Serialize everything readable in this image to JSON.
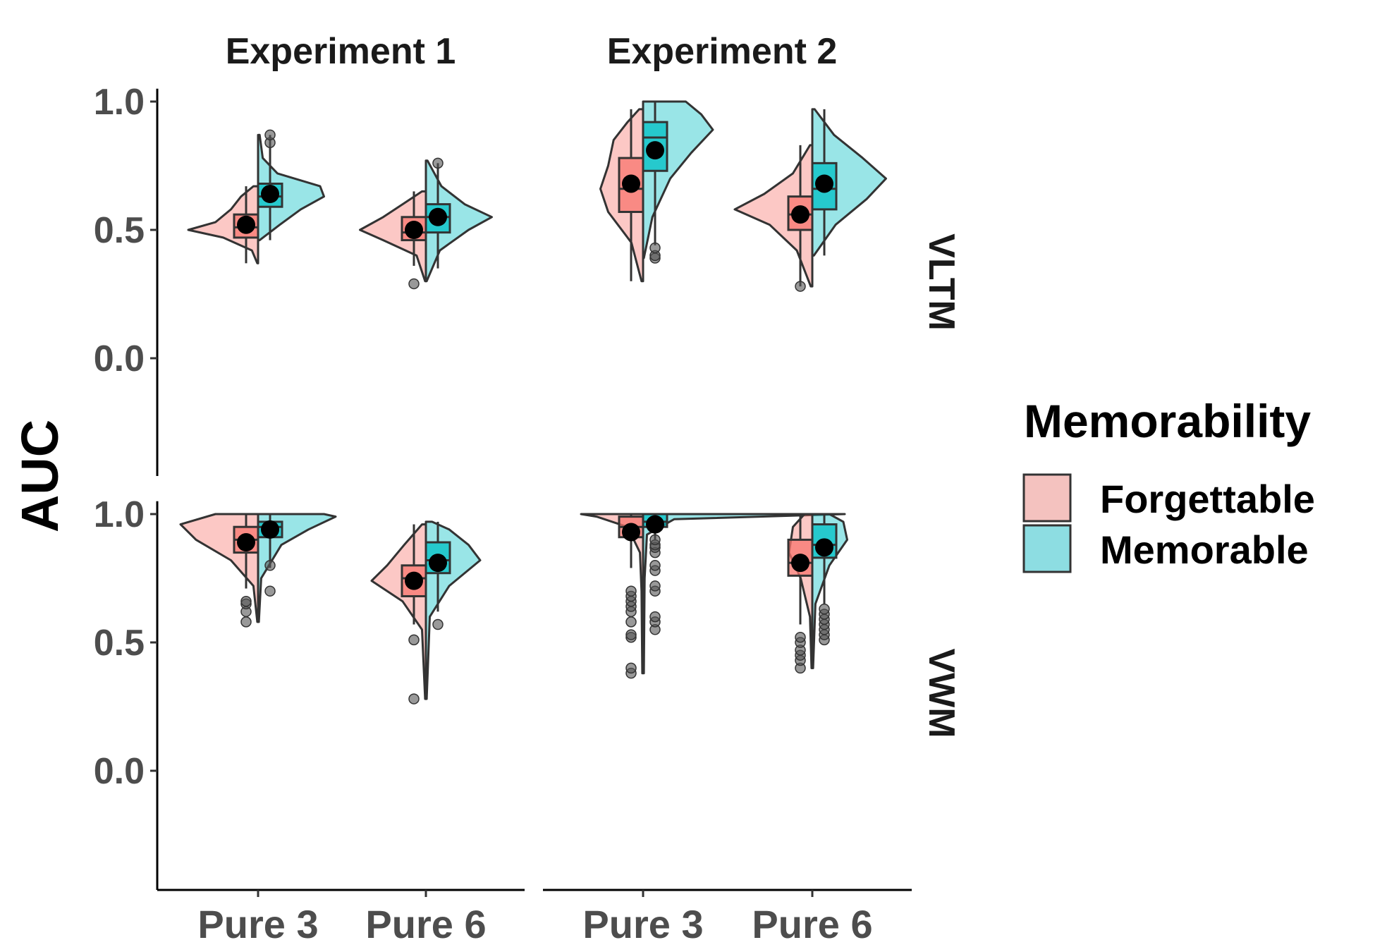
{
  "chart_data": {
    "type": "raincloud-violin-box",
    "ylabel": "AUC",
    "xlabel": "",
    "ylim": [
      -0.45,
      1.05
    ],
    "y_ticks": [
      "0.0",
      "0.5",
      "1.0"
    ],
    "y_tick_values": [
      0.0,
      0.5,
      1.0
    ],
    "columns": [
      "Experiment 1",
      "Experiment 2"
    ],
    "rows": [
      "VLTM",
      "VWM"
    ],
    "categories": [
      "Pure 3",
      "Pure 6"
    ],
    "legend": {
      "title": "Memorability",
      "placement": "right",
      "entries": [
        {
          "name": "Forgettable",
          "color": "#f4c2bf"
        },
        {
          "name": "Memorable",
          "color": "#8ddde2"
        }
      ]
    },
    "colors": {
      "forgettable_fill": "#f8766d",
      "memorable_fill": "#00bfc4",
      "outline": "#333333",
      "mean_point": "#000000",
      "outlier": "#555555"
    },
    "panels": [
      {
        "column": "Experiment 1",
        "row": "VLTM",
        "groups": [
          {
            "category": "Pure 3",
            "forgettable": {
              "min": 0.37,
              "q1": 0.47,
              "median": 0.51,
              "q3": 0.56,
              "max": 0.67,
              "mean": 0.52,
              "outliers": [],
              "density": [
                [
                  0.37,
                  0.01
                ],
                [
                  0.42,
                  0.08
                ],
                [
                  0.47,
                  0.45
                ],
                [
                  0.5,
                  0.9
                ],
                [
                  0.53,
                  0.55
                ],
                [
                  0.58,
                  0.35
                ],
                [
                  0.63,
                  0.22
                ],
                [
                  0.67,
                  0.06
                ]
              ]
            },
            "memorable": {
              "min": 0.46,
              "q1": 0.59,
              "median": 0.63,
              "q3": 0.68,
              "max": 0.87,
              "mean": 0.64,
              "outliers": [
                0.84,
                0.87
              ],
              "density": [
                [
                  0.46,
                  0.02
                ],
                [
                  0.52,
                  0.28
                ],
                [
                  0.58,
                  0.55
                ],
                [
                  0.63,
                  0.85
                ],
                [
                  0.67,
                  0.8
                ],
                [
                  0.72,
                  0.25
                ],
                [
                  0.78,
                  0.06
                ],
                [
                  0.87,
                  0.02
                ]
              ]
            }
          },
          {
            "category": "Pure 6",
            "forgettable": {
              "min": 0.36,
              "q1": 0.46,
              "median": 0.49,
              "q3": 0.55,
              "max": 0.65,
              "mean": 0.5,
              "outliers": [
                0.29
              ],
              "density": [
                [
                  0.3,
                  0.01
                ],
                [
                  0.4,
                  0.12
                ],
                [
                  0.46,
                  0.55
                ],
                [
                  0.5,
                  0.85
                ],
                [
                  0.55,
                  0.55
                ],
                [
                  0.6,
                  0.3
                ],
                [
                  0.65,
                  0.05
                ]
              ]
            },
            "memorable": {
              "min": 0.35,
              "q1": 0.49,
              "median": 0.55,
              "q3": 0.6,
              "max": 0.76,
              "mean": 0.55,
              "outliers": [
                0.76
              ],
              "density": [
                [
                  0.3,
                  0.01
                ],
                [
                  0.42,
                  0.18
                ],
                [
                  0.5,
                  0.55
                ],
                [
                  0.55,
                  0.85
                ],
                [
                  0.6,
                  0.5
                ],
                [
                  0.67,
                  0.2
                ],
                [
                  0.77,
                  0.02
                ]
              ]
            }
          }
        ]
      },
      {
        "column": "Experiment 2",
        "row": "VLTM",
        "groups": [
          {
            "category": "Pure 3",
            "forgettable": {
              "min": 0.3,
              "q1": 0.57,
              "median": 0.66,
              "q3": 0.78,
              "max": 0.97,
              "mean": 0.68,
              "outliers": [],
              "density": [
                [
                  0.3,
                  0.02
                ],
                [
                  0.45,
                  0.15
                ],
                [
                  0.57,
                  0.45
                ],
                [
                  0.66,
                  0.55
                ],
                [
                  0.75,
                  0.45
                ],
                [
                  0.85,
                  0.38
                ],
                [
                  0.92,
                  0.2
                ],
                [
                  0.97,
                  0.05
                ]
              ]
            },
            "memorable": {
              "min": 0.44,
              "q1": 0.73,
              "median": 0.86,
              "q3": 0.92,
              "max": 1.0,
              "mean": 0.81,
              "outliers": [
                0.39,
                0.4,
                0.43
              ],
              "density": [
                [
                  0.39,
                  0.01
                ],
                [
                  0.55,
                  0.12
                ],
                [
                  0.7,
                  0.35
                ],
                [
                  0.8,
                  0.62
                ],
                [
                  0.89,
                  0.9
                ],
                [
                  0.95,
                  0.75
                ],
                [
                  1.0,
                  0.55
                ]
              ]
            }
          },
          {
            "category": "Pure 6",
            "forgettable": {
              "min": 0.28,
              "q1": 0.5,
              "median": 0.56,
              "q3": 0.63,
              "max": 0.83,
              "mean": 0.56,
              "outliers": [
                0.28
              ],
              "density": [
                [
                  0.28,
                  0.02
                ],
                [
                  0.42,
                  0.2
                ],
                [
                  0.52,
                  0.55
                ],
                [
                  0.58,
                  1.0
                ],
                [
                  0.64,
                  0.62
                ],
                [
                  0.72,
                  0.25
                ],
                [
                  0.83,
                  0.03
                ]
              ]
            },
            "memorable": {
              "min": 0.4,
              "q1": 0.58,
              "median": 0.66,
              "q3": 0.76,
              "max": 0.97,
              "mean": 0.68,
              "outliers": [],
              "density": [
                [
                  0.4,
                  0.02
                ],
                [
                  0.52,
                  0.3
                ],
                [
                  0.62,
                  0.7
                ],
                [
                  0.7,
                  0.95
                ],
                [
                  0.78,
                  0.65
                ],
                [
                  0.87,
                  0.28
                ],
                [
                  0.97,
                  0.03
                ]
              ]
            }
          }
        ]
      },
      {
        "column": "Experiment 1",
        "row": "VWM",
        "groups": [
          {
            "category": "Pure 3",
            "forgettable": {
              "min": 0.71,
              "q1": 0.85,
              "median": 0.9,
              "q3": 0.95,
              "max": 1.0,
              "mean": 0.89,
              "outliers": [
                0.58,
                0.62,
                0.65,
                0.66
              ],
              "density": [
                [
                  0.58,
                  0.01
                ],
                [
                  0.72,
                  0.06
                ],
                [
                  0.82,
                  0.35
                ],
                [
                  0.9,
                  0.8
                ],
                [
                  0.96,
                  1.0
                ],
                [
                  1.0,
                  0.55
                ]
              ]
            },
            "memorable": {
              "min": 0.79,
              "q1": 0.91,
              "median": 0.95,
              "q3": 0.97,
              "max": 1.0,
              "mean": 0.94,
              "outliers": [
                0.7,
                0.8
              ],
              "density": [
                [
                  0.58,
                  0.01
                ],
                [
                  0.75,
                  0.04
                ],
                [
                  0.88,
                  0.3
                ],
                [
                  0.94,
                  0.65
                ],
                [
                  0.99,
                  1.0
                ],
                [
                  1.0,
                  0.85
                ]
              ]
            }
          },
          {
            "category": "Pure 6",
            "forgettable": {
              "min": 0.57,
              "q1": 0.68,
              "median": 0.75,
              "q3": 0.8,
              "max": 0.96,
              "mean": 0.74,
              "outliers": [
                0.28,
                0.51
              ],
              "density": [
                [
                  0.28,
                  0.01
                ],
                [
                  0.55,
                  0.05
                ],
                [
                  0.66,
                  0.3
                ],
                [
                  0.74,
                  0.7
                ],
                [
                  0.8,
                  0.5
                ],
                [
                  0.88,
                  0.28
                ],
                [
                  0.96,
                  0.05
                ]
              ]
            },
            "memorable": {
              "min": 0.62,
              "q1": 0.77,
              "median": 0.82,
              "q3": 0.89,
              "max": 0.97,
              "mean": 0.81,
              "outliers": [
                0.57
              ],
              "density": [
                [
                  0.28,
                  0.01
                ],
                [
                  0.6,
                  0.05
                ],
                [
                  0.72,
                  0.3
                ],
                [
                  0.82,
                  0.7
                ],
                [
                  0.88,
                  0.55
                ],
                [
                  0.94,
                  0.3
                ],
                [
                  0.97,
                  0.08
                ]
              ]
            }
          }
        ]
      },
      {
        "column": "Experiment 2",
        "row": "VWM",
        "groups": [
          {
            "category": "Pure 3",
            "forgettable": {
              "min": 0.79,
              "q1": 0.91,
              "median": 0.95,
              "q3": 0.99,
              "max": 1.0,
              "mean": 0.93,
              "outliers": [
                0.38,
                0.4,
                0.52,
                0.53,
                0.58,
                0.62,
                0.64,
                0.66,
                0.68,
                0.7
              ],
              "density": [
                [
                  0.38,
                  0.01
                ],
                [
                  0.7,
                  0.02
                ],
                [
                  0.85,
                  0.04
                ],
                [
                  0.95,
                  0.2
                ],
                [
                  0.99,
                  0.6
                ],
                [
                  1.0,
                  0.8
                ]
              ]
            },
            "memorable": {
              "min": 0.9,
              "q1": 0.95,
              "median": 0.97,
              "q3": 1.0,
              "max": 1.0,
              "mean": 0.96,
              "outliers": [
                0.55,
                0.58,
                0.6,
                0.7,
                0.72,
                0.78,
                0.8,
                0.85,
                0.87,
                0.88,
                0.9
              ],
              "density": [
                [
                  0.38,
                  0.01
                ],
                [
                  0.75,
                  0.02
                ],
                [
                  0.92,
                  0.05
                ],
                [
                  0.98,
                  0.4
                ],
                [
                  1.0,
                  2.6
                ]
              ]
            }
          },
          {
            "category": "Pure 6",
            "forgettable": {
              "min": 0.57,
              "q1": 0.76,
              "median": 0.81,
              "q3": 0.9,
              "max": 1.0,
              "mean": 0.81,
              "outliers": [
                0.4,
                0.43,
                0.45,
                0.47,
                0.5,
                0.52
              ],
              "density": [
                [
                  0.4,
                  0.01
                ],
                [
                  0.6,
                  0.03
                ],
                [
                  0.75,
                  0.15
                ],
                [
                  0.85,
                  0.3
                ],
                [
                  0.95,
                  0.25
                ],
                [
                  1.0,
                  0.1
                ]
              ]
            },
            "memorable": {
              "min": 0.65,
              "q1": 0.83,
              "median": 0.88,
              "q3": 0.96,
              "max": 1.0,
              "mean": 0.87,
              "outliers": [
                0.51,
                0.53,
                0.55,
                0.57,
                0.59,
                0.61,
                0.63
              ],
              "density": [
                [
                  0.4,
                  0.01
                ],
                [
                  0.65,
                  0.04
                ],
                [
                  0.8,
                  0.22
                ],
                [
                  0.9,
                  0.45
                ],
                [
                  0.97,
                  0.4
                ],
                [
                  1.0,
                  0.22
                ]
              ]
            }
          }
        ]
      }
    ]
  }
}
